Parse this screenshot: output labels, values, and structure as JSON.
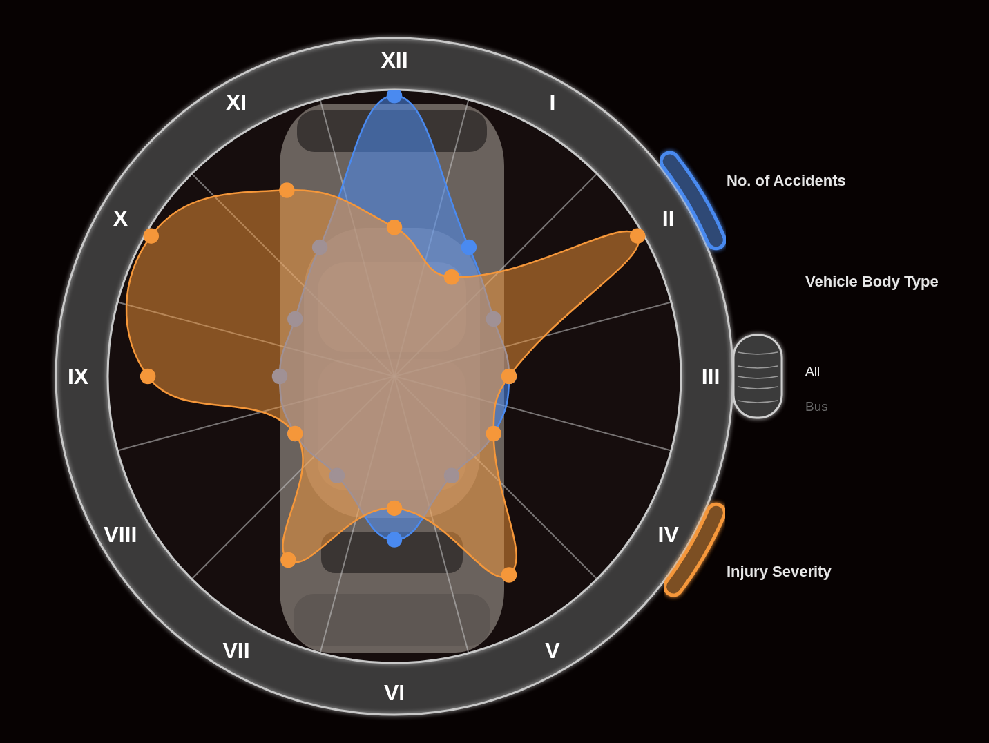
{
  "chart_data": {
    "type": "radar",
    "categories": [
      "XII",
      "I",
      "II",
      "III",
      "IV",
      "V",
      "VI",
      "VII",
      "VIII",
      "IX",
      "X",
      "XI"
    ],
    "rlim": [
      0,
      100
    ],
    "tick_labels": false,
    "grid": false,
    "series": [
      {
        "name": "No. of Accidents",
        "color": "#4a8af0",
        "values": [
          98,
          52,
          40,
          40,
          40,
          40,
          57,
          40,
          40,
          40,
          40,
          52
        ]
      },
      {
        "name": "Injury Severity",
        "color": "#f5973a",
        "values": [
          52,
          40,
          98,
          40,
          40,
          80,
          46,
          74,
          40,
          86,
          98,
          75
        ]
      }
    ]
  },
  "controls": {
    "title": "Vehicle Body Type",
    "options": [
      "All",
      "Bus"
    ]
  }
}
